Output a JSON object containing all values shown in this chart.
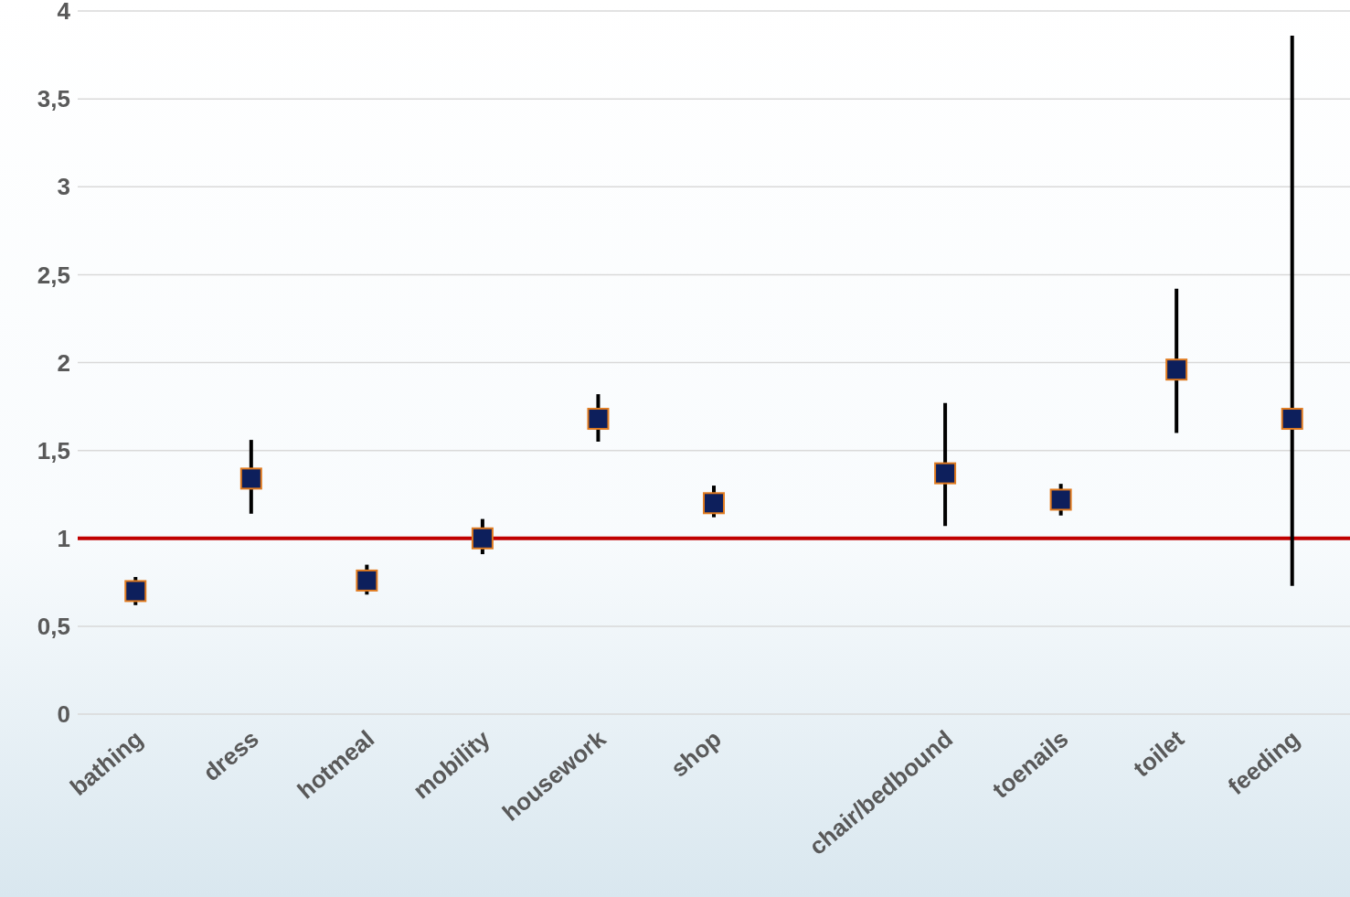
{
  "chart_data": {
    "type": "scatter",
    "categories": [
      "bathing",
      "dress",
      "hotmeal",
      "mobility",
      "housework",
      "shop",
      null,
      "chair/bedbound",
      "toenails",
      "toilet",
      "feeding"
    ],
    "values": [
      0.7,
      1.34,
      0.76,
      1.0,
      1.68,
      1.2,
      null,
      1.37,
      1.22,
      1.96,
      1.68
    ],
    "errors": [
      [
        0.62,
        0.78
      ],
      [
        1.14,
        1.56
      ],
      [
        0.68,
        0.85
      ],
      [
        0.91,
        1.11
      ],
      [
        1.55,
        1.82
      ],
      [
        1.12,
        1.3
      ],
      null,
      [
        1.07,
        1.77
      ],
      [
        1.13,
        1.31
      ],
      [
        1.6,
        2.42
      ],
      [
        0.73,
        3.86
      ]
    ],
    "color": "#0d1f5c",
    "marker": "square",
    "ylim": [
      0,
      4
    ],
    "yticks": [
      0,
      {
        "value": 0.5,
        "label": "0,5"
      },
      1,
      {
        "value": 1.5,
        "label": "1,5"
      },
      2,
      {
        "value": 2.5,
        "label": "2,5"
      },
      3,
      {
        "value": 3.5,
        "label": "3,5"
      },
      4
    ],
    "grid": "y",
    "ref_lines": [
      {
        "axis": "y",
        "value": 1,
        "color": "#c00000"
      }
    ]
  }
}
